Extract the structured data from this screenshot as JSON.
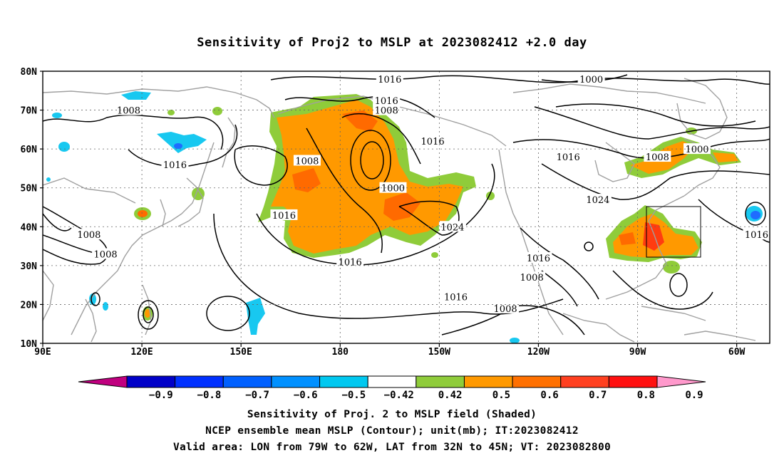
{
  "title": "Sensitivity of Proj2 to MSLP at 2023082412 +2.0 day",
  "map": {
    "lat_labels": [
      "80N",
      "70N",
      "60N",
      "50N",
      "40N",
      "30N",
      "20N",
      "10N"
    ],
    "lon_labels": [
      "90E",
      "120E",
      "150E",
      "180",
      "150W",
      "120W",
      "90W",
      "60W"
    ],
    "lon_range": [
      "90E",
      "50W"
    ],
    "lat_range": [
      "10N",
      "80N"
    ],
    "contour_labels": [
      {
        "text": "1016",
        "lon": 195,
        "lat": 78
      },
      {
        "text": "1000",
        "lon": 256,
        "lat": 78
      },
      {
        "text": "1016",
        "lon": 194,
        "lat": 72.5
      },
      {
        "text": "1008",
        "lon": 194,
        "lat": 70
      },
      {
        "text": "1008",
        "lon": 116,
        "lat": 70
      },
      {
        "text": "1000",
        "lon": 288,
        "lat": 60
      },
      {
        "text": "1016",
        "lon": 208,
        "lat": 62
      },
      {
        "text": "1008",
        "lon": 276,
        "lat": 58
      },
      {
        "text": "1008",
        "lon": 170,
        "lat": 57
      },
      {
        "text": "1016",
        "lon": 130,
        "lat": 56
      },
      {
        "text": "1016",
        "lon": 249,
        "lat": 58
      },
      {
        "text": "1000",
        "lon": 196,
        "lat": 50
      },
      {
        "text": "1024",
        "lon": 258,
        "lat": 47
      },
      {
        "text": "1016",
        "lon": 163,
        "lat": 43
      },
      {
        "text": "1024",
        "lon": 214,
        "lat": 40
      },
      {
        "text": "1016",
        "lon": 306,
        "lat": 38
      },
      {
        "text": "1008",
        "lon": 104,
        "lat": 38
      },
      {
        "text": "1008",
        "lon": 109,
        "lat": 33
      },
      {
        "text": "1016",
        "lon": 183,
        "lat": 31
      },
      {
        "text": "1016",
        "lon": 240,
        "lat": 32
      },
      {
        "text": "1008",
        "lon": 238,
        "lat": 27
      },
      {
        "text": "1016",
        "lon": 215,
        "lat": 22
      },
      {
        "text": "1008",
        "lon": 230,
        "lat": 19
      }
    ],
    "valid_area": {
      "lon_min": -79,
      "lon_max": -62,
      "lat_min": 32,
      "lat_max": 45
    },
    "shading_colors": {
      "green": "#8fcc3a",
      "orange": "#ff9900",
      "dark_orange": "#ff6a00",
      "red_orange": "#ff3c10",
      "light_blue": "#18c8f0",
      "blue": "#1f6cff",
      "contour": "#000000",
      "coastline": "#a0a0a0"
    }
  },
  "colorbar": {
    "colors": [
      "#c0007f",
      "#0000c8",
      "#0030ff",
      "#0060ff",
      "#0090ff",
      "#00c8f0",
      "#ffffff",
      "#8fcc3a",
      "#ff9900",
      "#ff7000",
      "#ff4020",
      "#ff1010",
      "#ff99cc"
    ],
    "labels": [
      "-0.9",
      "-0.8",
      "-0.7",
      "-0.6",
      "-0.5",
      "-0.42",
      "0.42",
      "0.5",
      "0.6",
      "0.7",
      "0.8",
      "0.9"
    ]
  },
  "captions": {
    "line1": "Sensitivity of Proj. 2 to MSLP field (Shaded)",
    "line2": "NCEP ensemble mean MSLP (Contour); unit(mb); IT:2023082412",
    "line3": "Valid area: LON from 79W to 62W, LAT from 32N to 45N; VT: 2023082800"
  }
}
